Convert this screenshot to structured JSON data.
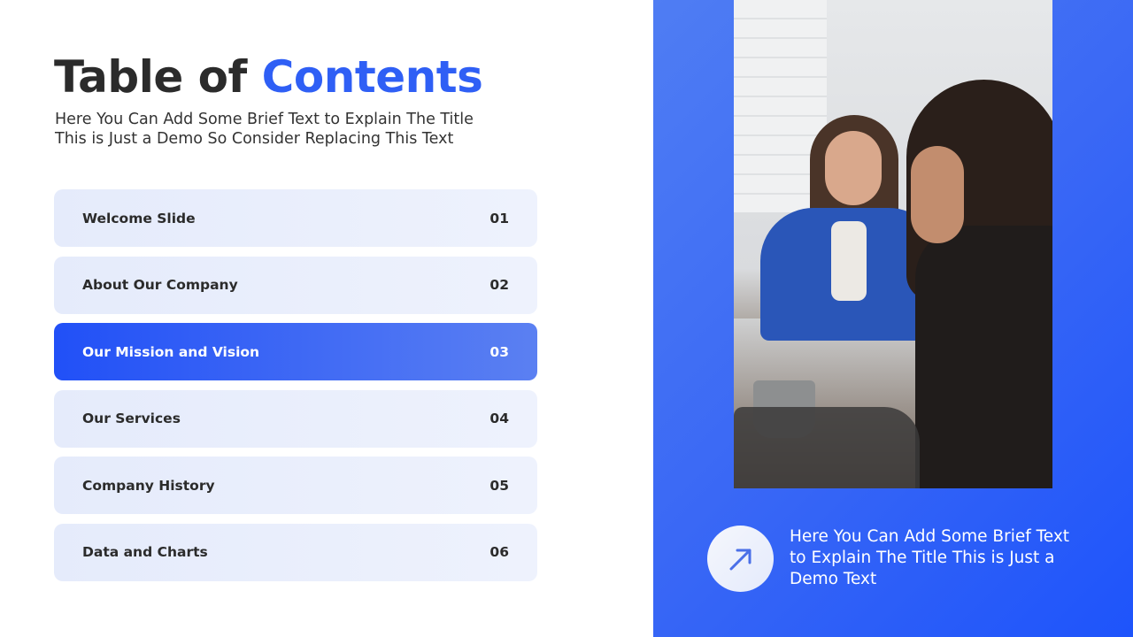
{
  "header": {
    "title_part1": "Table of ",
    "title_part2": "Contents",
    "subtitle_line1": "Here You Can Add Some Brief Text to Explain The Title",
    "subtitle_line2": "This is Just a Demo So Consider Replacing This Text"
  },
  "toc": {
    "items": [
      {
        "label": "Welcome Slide",
        "number": "01",
        "active": false
      },
      {
        "label": "About Our Company",
        "number": "02",
        "active": false
      },
      {
        "label": "Our Mission and Vision",
        "number": "03",
        "active": true
      },
      {
        "label": "Our Services",
        "number": "04",
        "active": false
      },
      {
        "label": "Company History",
        "number": "05",
        "active": false
      },
      {
        "label": "Data and Charts",
        "number": "06",
        "active": false
      }
    ]
  },
  "side_panel": {
    "icon": "arrow-up-right-icon",
    "text": "Here You Can Add Some Brief Text to Explain The Title This is Just a Demo Text"
  },
  "colors": {
    "accent": "#2f5ff5",
    "active_item_start": "#2150f7",
    "active_item_end": "#5b80f2",
    "item_bg": "#e9eefc",
    "text_dark": "#2b2b2b",
    "panel_blue": "#3a68f5"
  }
}
